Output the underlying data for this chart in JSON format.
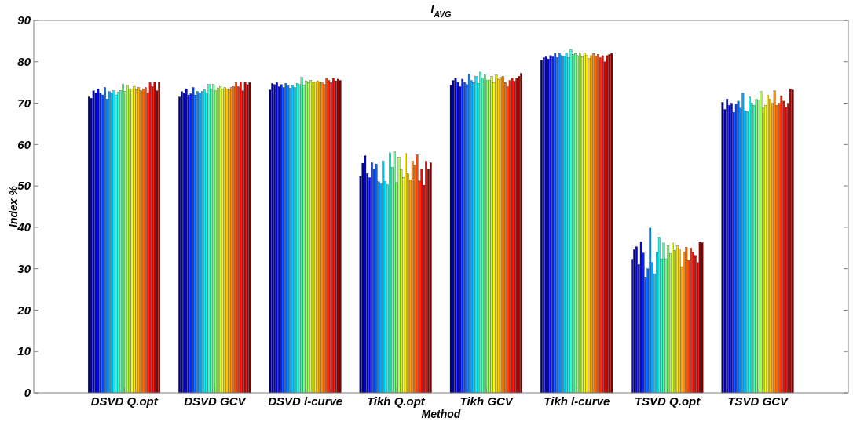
{
  "chart_data": {
    "type": "bar",
    "title": "I$_{AVG}$",
    "xlabel": "Method",
    "ylabel": "Index %",
    "categories": [
      "DSVD Q.opt",
      "DSVD GCV",
      "DSVD l-curve",
      "Tikh Q.opt",
      "Tikh GCV",
      "Tikh l-curve",
      "TSVD Q.opt",
      "TSVD GCV"
    ],
    "ylim": [
      0,
      90
    ],
    "yticks": [
      0,
      10,
      20,
      30,
      40,
      50,
      60,
      70,
      80,
      90
    ],
    "grid": false,
    "series": [
      {
        "color": "#000080",
        "values": [
          71.5,
          71.5,
          73.2,
          52.3,
          74.3,
          80.5,
          32.3,
          70.2
        ]
      },
      {
        "color": "#0000a0",
        "values": [
          71.2,
          72.8,
          74.8,
          55.5,
          75.5,
          81,
          34.6,
          68.5
        ]
      },
      {
        "color": "#0000c1",
        "values": [
          73,
          72.5,
          74.5,
          57.3,
          76,
          81.2,
          35.3,
          71
        ]
      },
      {
        "color": "#0000e2",
        "values": [
          72.5,
          73.5,
          75,
          53,
          75,
          80.7,
          31,
          69.5
        ]
      },
      {
        "color": "#0004ff",
        "values": [
          73.5,
          72,
          74,
          52,
          74,
          81.5,
          36.5,
          70
        ]
      },
      {
        "color": "#0025ff",
        "values": [
          72.5,
          72.3,
          74.5,
          55.6,
          75.8,
          81.2,
          33.8,
          67.8
        ]
      },
      {
        "color": "#0046ff",
        "values": [
          72,
          73.8,
          73.8,
          54,
          75,
          82,
          28,
          69.8
        ]
      },
      {
        "color": "#0067ff",
        "values": [
          73.8,
          72,
          74.8,
          55.3,
          74.5,
          81,
          30,
          70.5
        ]
      },
      {
        "color": "#0088ff",
        "values": [
          71,
          72.8,
          74.2,
          51,
          77,
          82,
          39.8,
          68.8
        ]
      },
      {
        "color": "#00a8ff",
        "values": [
          72.8,
          72.5,
          73.6,
          50.5,
          75.5,
          81.5,
          31.5,
          72.5
        ]
      },
      {
        "color": "#00c9ff",
        "values": [
          72.5,
          72.8,
          74.4,
          56,
          75,
          81.4,
          28.8,
          68.2
        ]
      },
      {
        "color": "#00eaff",
        "values": [
          73,
          73.2,
          73.8,
          51,
          76.5,
          82.2,
          34,
          68
        ]
      },
      {
        "color": "#0cfff3",
        "values": [
          72,
          72.5,
          74.8,
          50.3,
          74.8,
          81,
          37.6,
          71.5
        ]
      },
      {
        "color": "#2dffd2",
        "values": [
          72.7,
          74.5,
          74.5,
          58,
          77.5,
          83,
          32.4,
          70
        ]
      },
      {
        "color": "#4effb1",
        "values": [
          73,
          73.5,
          76.2,
          54.5,
          76,
          81.8,
          36.2,
          69.5
        ]
      },
      {
        "color": "#6fff90",
        "values": [
          74.5,
          74.5,
          74.4,
          58.2,
          76.8,
          82,
          32.4,
          71
        ]
      },
      {
        "color": "#90ff6f",
        "values": [
          72.8,
          73,
          75.3,
          50.8,
          75.5,
          81.5,
          35.5,
          70.8
        ]
      },
      {
        "color": "#b1ff4e",
        "values": [
          74.3,
          73.7,
          75,
          57,
          75.6,
          82.2,
          33.6,
          72.8
        ]
      },
      {
        "color": "#d2ff2d",
        "values": [
          73.5,
          74,
          75.5,
          54,
          76.5,
          81.2,
          36.2,
          68.8
        ]
      },
      {
        "color": "#f3ff0c",
        "values": [
          73.5,
          73.5,
          75,
          52,
          75,
          82.1,
          34.4,
          69.5
        ]
      },
      {
        "color": "#ffea00",
        "values": [
          74,
          73.8,
          75.2,
          57.8,
          76.8,
          81.6,
          35.6,
          72
        ]
      },
      {
        "color": "#ffc900",
        "values": [
          73.3,
          73.5,
          75.4,
          53,
          75.8,
          80.8,
          34.8,
          71
        ]
      },
      {
        "color": "#ffa800",
        "values": [
          73.8,
          73.2,
          75.2,
          51.5,
          76.2,
          81.5,
          30.5,
          70
        ]
      },
      {
        "color": "#ff8800",
        "values": [
          73,
          73.8,
          75,
          56,
          76.5,
          82,
          34,
          73
        ]
      },
      {
        "color": "#ff6700",
        "values": [
          73.5,
          74,
          74.5,
          55,
          75,
          81.3,
          35.2,
          69.5
        ]
      },
      {
        "color": "#ff4600",
        "values": [
          73.8,
          75,
          76,
          57.5,
          74,
          81.8,
          32,
          70
        ]
      },
      {
        "color": "#ff2500",
        "values": [
          72.5,
          74,
          75.5,
          51.2,
          75.5,
          81,
          35,
          71.8
        ]
      },
      {
        "color": "#ff0400",
        "values": [
          75,
          75.2,
          75,
          54,
          76,
          81.5,
          34,
          70.5
        ]
      },
      {
        "color": "#e20000",
        "values": [
          74,
          73,
          76,
          50.2,
          75.3,
          80,
          33.2,
          69
        ]
      },
      {
        "color": "#c10000",
        "values": [
          75.2,
          75.2,
          75.4,
          56,
          76,
          81.5,
          31.5,
          70
        ]
      },
      {
        "color": "#a00000",
        "values": [
          73,
          74.5,
          75.8,
          54,
          76.5,
          81.8,
          36.5,
          73.5
        ]
      },
      {
        "color": "#800000",
        "values": [
          75.2,
          75,
          75.5,
          55.6,
          77.2,
          82,
          36.3,
          73.2
        ]
      }
    ]
  }
}
